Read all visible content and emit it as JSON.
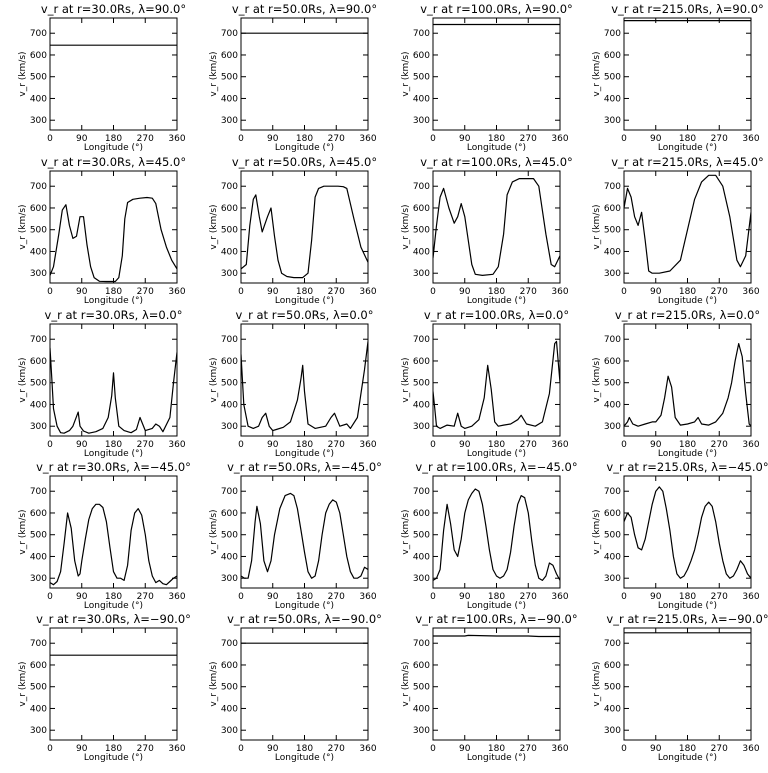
{
  "chart_data": [
    {
      "type": "line",
      "title": "v_r at r=30.0Rs, λ=90.0°",
      "xlabel": "Longitude (°)",
      "ylabel": "v_r (km/s)",
      "xlim": [
        0,
        360
      ],
      "ylim": [
        255,
        770
      ],
      "xticks": [
        0,
        90,
        180,
        270,
        360
      ],
      "yticks": [
        300,
        400,
        500,
        600,
        700
      ],
      "x": [
        0,
        360
      ],
      "y": [
        645,
        645
      ]
    },
    {
      "type": "line",
      "title": "v_r at r=50.0Rs, λ=90.0°",
      "xlabel": "Longitude (°)",
      "ylabel": "v_r (km/s)",
      "xlim": [
        0,
        360
      ],
      "ylim": [
        255,
        770
      ],
      "xticks": [
        0,
        90,
        180,
        270,
        360
      ],
      "yticks": [
        300,
        400,
        500,
        600,
        700
      ],
      "x": [
        0,
        360
      ],
      "y": [
        700,
        700
      ]
    },
    {
      "type": "line",
      "title": "v_r at r=100.0Rs, λ=90.0°",
      "xlabel": "Longitude (°)",
      "ylabel": "v_r (km/s)",
      "xlim": [
        0,
        360
      ],
      "ylim": [
        255,
        770
      ],
      "xticks": [
        0,
        90,
        180,
        270,
        360
      ],
      "yticks": [
        300,
        400,
        500,
        600,
        700
      ],
      "x": [
        0,
        360
      ],
      "y": [
        740,
        740
      ]
    },
    {
      "type": "line",
      "title": "v_r at r=215.0Rs, λ=90.0°",
      "xlabel": "Longitude (°)",
      "ylabel": "v_r (km/s)",
      "xlim": [
        0,
        360
      ],
      "ylim": [
        255,
        770
      ],
      "xticks": [
        0,
        90,
        180,
        270,
        360
      ],
      "yticks": [
        300,
        400,
        500,
        600,
        700
      ],
      "x": [
        0,
        360
      ],
      "y": [
        758,
        758
      ]
    },
    {
      "type": "line",
      "title": "v_r at r=30.0Rs, λ=45.0°",
      "xlabel": "Longitude (°)",
      "ylabel": "v_r (km/s)",
      "xlim": [
        0,
        360
      ],
      "ylim": [
        255,
        770
      ],
      "xticks": [
        0,
        90,
        180,
        270,
        360
      ],
      "yticks": [
        300,
        400,
        500,
        600,
        700
      ],
      "x": [
        0,
        10,
        25,
        35,
        45,
        55,
        65,
        75,
        85,
        95,
        105,
        115,
        125,
        140,
        160,
        185,
        195,
        205,
        212,
        220,
        235,
        255,
        275,
        290,
        300,
        315,
        330,
        345,
        360
      ],
      "y": [
        290,
        330,
        480,
        590,
        615,
        520,
        460,
        470,
        560,
        560,
        430,
        330,
        280,
        263,
        262,
        262,
        280,
        380,
        550,
        625,
        640,
        645,
        648,
        645,
        620,
        500,
        420,
        360,
        320
      ]
    },
    {
      "type": "line",
      "title": "v_r at r=50.0Rs, λ=45.0°",
      "xlabel": "Longitude (°)",
      "ylabel": "v_r (km/s)",
      "xlim": [
        0,
        360
      ],
      "ylim": [
        255,
        770
      ],
      "xticks": [
        0,
        90,
        180,
        270,
        360
      ],
      "yticks": [
        300,
        400,
        500,
        600,
        700
      ],
      "x": [
        0,
        15,
        25,
        35,
        42,
        52,
        60,
        75,
        85,
        95,
        105,
        115,
        130,
        150,
        175,
        190,
        200,
        210,
        220,
        235,
        255,
        275,
        290,
        300,
        320,
        340,
        360
      ],
      "y": [
        320,
        340,
        520,
        640,
        660,
        560,
        490,
        560,
        600,
        470,
        360,
        300,
        285,
        280,
        280,
        300,
        450,
        650,
        690,
        700,
        700,
        700,
        698,
        690,
        550,
        420,
        350
      ]
    },
    {
      "type": "line",
      "title": "v_r at r=100.0Rs, λ=45.0°",
      "xlabel": "Longitude (°)",
      "ylabel": "v_r (km/s)",
      "xlim": [
        0,
        360
      ],
      "ylim": [
        255,
        770
      ],
      "xticks": [
        0,
        90,
        180,
        270,
        360
      ],
      "yticks": [
        300,
        400,
        500,
        600,
        700
      ],
      "x": [
        0,
        10,
        20,
        30,
        45,
        60,
        70,
        80,
        90,
        100,
        110,
        120,
        140,
        170,
        185,
        200,
        210,
        225,
        245,
        265,
        285,
        300,
        320,
        335,
        345,
        360
      ],
      "y": [
        370,
        520,
        650,
        690,
        600,
        530,
        560,
        620,
        560,
        450,
        340,
        295,
        290,
        295,
        330,
        480,
        660,
        720,
        735,
        735,
        735,
        700,
        480,
        340,
        330,
        380
      ]
    },
    {
      "type": "line",
      "title": "v_r at r=215.0Rs, λ=45.0°",
      "xlabel": "Longitude (°)",
      "ylabel": "v_r (km/s)",
      "xlim": [
        0,
        360
      ],
      "ylim": [
        255,
        770
      ],
      "xticks": [
        0,
        90,
        180,
        270,
        360
      ],
      "yticks": [
        300,
        400,
        500,
        600,
        700
      ],
      "x": [
        0,
        10,
        20,
        30,
        40,
        50,
        60,
        70,
        80,
        100,
        130,
        160,
        180,
        200,
        220,
        240,
        260,
        280,
        300,
        320,
        330,
        345,
        360
      ],
      "y": [
        600,
        690,
        650,
        560,
        520,
        580,
        450,
        310,
        300,
        300,
        310,
        360,
        500,
        640,
        720,
        750,
        750,
        700,
        560,
        360,
        330,
        380,
        580
      ]
    },
    {
      "type": "line",
      "title": "v_r at r=30.0Rs, λ=0.0°",
      "xlabel": "Longitude (°)",
      "ylabel": "v_r (km/s)",
      "xlim": [
        0,
        360
      ],
      "ylim": [
        255,
        770
      ],
      "xticks": [
        0,
        90,
        180,
        270,
        360
      ],
      "yticks": [
        300,
        400,
        500,
        600,
        700
      ],
      "x": [
        0,
        5,
        10,
        20,
        30,
        40,
        55,
        65,
        80,
        85,
        95,
        110,
        130,
        150,
        165,
        175,
        180,
        185,
        195,
        210,
        230,
        245,
        255,
        270,
        290,
        300,
        310,
        320,
        340,
        350,
        360
      ],
      "y": [
        660,
        520,
        380,
        300,
        270,
        268,
        280,
        300,
        365,
        300,
        278,
        268,
        275,
        290,
        340,
        440,
        545,
        430,
        300,
        280,
        270,
        285,
        340,
        280,
        290,
        310,
        300,
        275,
        340,
        500,
        640
      ]
    },
    {
      "type": "line",
      "title": "v_r at r=50.0Rs, λ=0.0°",
      "xlabel": "Longitude (°)",
      "ylabel": "v_r (km/s)",
      "xlim": [
        0,
        360
      ],
      "ylim": [
        255,
        770
      ],
      "xticks": [
        0,
        90,
        180,
        270,
        360
      ],
      "yticks": [
        300,
        400,
        500,
        600,
        700
      ],
      "x": [
        0,
        8,
        20,
        35,
        50,
        60,
        70,
        80,
        90,
        100,
        120,
        140,
        160,
        170,
        175,
        180,
        190,
        210,
        240,
        255,
        265,
        280,
        300,
        310,
        330,
        350,
        360
      ],
      "y": [
        630,
        400,
        300,
        290,
        300,
        340,
        360,
        300,
        280,
        285,
        295,
        320,
        420,
        520,
        580,
        460,
        310,
        290,
        300,
        340,
        360,
        300,
        310,
        290,
        340,
        560,
        690
      ]
    },
    {
      "type": "line",
      "title": "v_r at r=100.0Rs, λ=0.0°",
      "xlabel": "Longitude (°)",
      "ylabel": "v_r (km/s)",
      "xlim": [
        0,
        360
      ],
      "ylim": [
        255,
        770
      ],
      "xticks": [
        0,
        90,
        180,
        270,
        360
      ],
      "yticks": [
        300,
        400,
        500,
        600,
        700
      ],
      "x": [
        0,
        5,
        10,
        20,
        40,
        60,
        70,
        80,
        90,
        110,
        130,
        145,
        155,
        165,
        175,
        185,
        200,
        220,
        240,
        250,
        265,
        290,
        310,
        330,
        345,
        350,
        360
      ],
      "y": [
        460,
        380,
        300,
        290,
        305,
        300,
        360,
        300,
        290,
        300,
        330,
        430,
        580,
        470,
        320,
        300,
        305,
        310,
        330,
        350,
        310,
        300,
        320,
        450,
        680,
        690,
        500
      ]
    },
    {
      "type": "line",
      "title": "v_r at r=215.0Rs, λ=0.0°",
      "xlabel": "Longitude (°)",
      "ylabel": "v_r (km/s)",
      "xlim": [
        0,
        360
      ],
      "ylim": [
        255,
        770
      ],
      "xticks": [
        0,
        90,
        180,
        270,
        360
      ],
      "yticks": [
        300,
        400,
        500,
        600,
        700
      ],
      "x": [
        0,
        10,
        15,
        25,
        40,
        60,
        80,
        90,
        105,
        115,
        125,
        135,
        145,
        160,
        180,
        200,
        210,
        220,
        240,
        260,
        280,
        295,
        305,
        315,
        325,
        335,
        345,
        355,
        360
      ],
      "y": [
        300,
        320,
        340,
        310,
        300,
        310,
        320,
        320,
        350,
        430,
        530,
        480,
        340,
        305,
        310,
        320,
        340,
        310,
        305,
        320,
        360,
        430,
        500,
        600,
        680,
        620,
        450,
        310,
        300
      ]
    },
    {
      "type": "line",
      "title": "v_r at r=30.0Rs, λ=−45.0°",
      "xlabel": "Longitude (°)",
      "ylabel": "v_r (km/s)",
      "xlim": [
        0,
        360
      ],
      "ylim": [
        255,
        770
      ],
      "xticks": [
        0,
        90,
        180,
        270,
        360
      ],
      "yticks": [
        300,
        400,
        500,
        600,
        700
      ],
      "x": [
        0,
        10,
        20,
        30,
        40,
        50,
        60,
        70,
        80,
        85,
        90,
        100,
        110,
        120,
        130,
        140,
        150,
        160,
        170,
        180,
        190,
        200,
        210,
        220,
        230,
        240,
        250,
        260,
        270,
        280,
        290,
        300,
        310,
        320,
        330,
        340,
        350,
        360
      ],
      "y": [
        280,
        270,
        285,
        330,
        460,
        600,
        530,
        380,
        310,
        320,
        380,
        480,
        570,
        620,
        640,
        640,
        625,
        560,
        440,
        330,
        300,
        300,
        290,
        360,
        520,
        600,
        620,
        590,
        500,
        380,
        310,
        280,
        290,
        275,
        270,
        285,
        300,
        310
      ]
    },
    {
      "type": "line",
      "title": "v_r at r=50.0Rs, λ=−45.0°",
      "xlabel": "Longitude (°)",
      "ylabel": "v_r (km/s)",
      "xlim": [
        0,
        360
      ],
      "ylim": [
        255,
        770
      ],
      "xticks": [
        0,
        90,
        180,
        270,
        360
      ],
      "yticks": [
        300,
        400,
        500,
        600,
        700
      ],
      "x": [
        0,
        10,
        20,
        30,
        40,
        45,
        55,
        65,
        75,
        85,
        95,
        110,
        125,
        140,
        150,
        160,
        170,
        180,
        190,
        200,
        210,
        220,
        230,
        240,
        250,
        260,
        270,
        280,
        290,
        300,
        310,
        320,
        330,
        340,
        350,
        360
      ],
      "y": [
        310,
        300,
        300,
        380,
        560,
        630,
        550,
        380,
        330,
        380,
        500,
        620,
        680,
        690,
        680,
        620,
        520,
        420,
        330,
        300,
        310,
        380,
        500,
        600,
        640,
        660,
        650,
        600,
        500,
        400,
        330,
        300,
        300,
        310,
        350,
        340
      ]
    },
    {
      "type": "line",
      "title": "v_r at r=100.0Rs, λ=−45.0°",
      "xlabel": "Longitude (°)",
      "ylabel": "v_r (km/s)",
      "xlim": [
        0,
        360
      ],
      "ylim": [
        255,
        770
      ],
      "xticks": [
        0,
        90,
        180,
        270,
        360
      ],
      "yticks": [
        300,
        400,
        500,
        600,
        700
      ],
      "x": [
        0,
        10,
        20,
        30,
        40,
        50,
        60,
        70,
        80,
        90,
        100,
        110,
        120,
        130,
        140,
        150,
        160,
        170,
        180,
        190,
        200,
        210,
        220,
        230,
        240,
        250,
        260,
        270,
        280,
        290,
        300,
        310,
        320,
        330,
        340,
        350,
        360
      ],
      "y": [
        290,
        300,
        340,
        520,
        640,
        550,
        430,
        400,
        480,
        600,
        660,
        690,
        710,
        700,
        640,
        540,
        430,
        340,
        310,
        300,
        310,
        340,
        420,
        540,
        640,
        680,
        670,
        600,
        470,
        360,
        300,
        290,
        310,
        370,
        360,
        320,
        290
      ]
    },
    {
      "type": "line",
      "title": "v_r at r=215.0Rs, λ=−45.0°",
      "xlabel": "Longitude (°)",
      "ylabel": "v_r (km/s)",
      "xlim": [
        0,
        360
      ],
      "ylim": [
        255,
        770
      ],
      "xticks": [
        0,
        90,
        180,
        270,
        360
      ],
      "yticks": [
        300,
        400,
        500,
        600,
        700
      ],
      "x": [
        0,
        10,
        20,
        30,
        40,
        50,
        60,
        70,
        80,
        90,
        100,
        110,
        120,
        130,
        140,
        150,
        160,
        170,
        180,
        190,
        200,
        210,
        220,
        230,
        240,
        250,
        260,
        270,
        280,
        290,
        300,
        310,
        320,
        330,
        340,
        350,
        360
      ],
      "y": [
        560,
        600,
        580,
        500,
        440,
        430,
        480,
        560,
        640,
        700,
        720,
        700,
        620,
        520,
        400,
        320,
        300,
        310,
        340,
        380,
        430,
        500,
        580,
        630,
        650,
        630,
        560,
        460,
        380,
        320,
        300,
        310,
        340,
        380,
        360,
        320,
        300
      ]
    },
    {
      "type": "line",
      "title": "v_r at r=30.0Rs, λ=−90.0°",
      "xlabel": "Longitude (°)",
      "ylabel": "v_r (km/s)",
      "xlim": [
        0,
        360
      ],
      "ylim": [
        255,
        770
      ],
      "xticks": [
        0,
        90,
        180,
        270,
        360
      ],
      "yticks": [
        300,
        400,
        500,
        600,
        700
      ],
      "x": [
        0,
        360
      ],
      "y": [
        645,
        645
      ]
    },
    {
      "type": "line",
      "title": "v_r at r=50.0Rs, λ=−90.0°",
      "xlabel": "Longitude (°)",
      "ylabel": "v_r (km/s)",
      "xlim": [
        0,
        360
      ],
      "ylim": [
        255,
        770
      ],
      "xticks": [
        0,
        90,
        180,
        270,
        360
      ],
      "yticks": [
        300,
        400,
        500,
        600,
        700
      ],
      "x": [
        0,
        360
      ],
      "y": [
        700,
        700
      ]
    },
    {
      "type": "line",
      "title": "v_r at r=100.0Rs, λ=−90.0°",
      "xlabel": "Longitude (°)",
      "ylabel": "v_r (km/s)",
      "xlim": [
        0,
        360
      ],
      "ylim": [
        255,
        770
      ],
      "xticks": [
        0,
        90,
        180,
        270,
        360
      ],
      "yticks": [
        300,
        400,
        500,
        600,
        700
      ],
      "x": [
        0,
        90,
        100,
        180,
        270,
        300,
        360
      ],
      "y": [
        733,
        733,
        736,
        733,
        733,
        731,
        731
      ]
    },
    {
      "type": "line",
      "title": "v_r at r=215.0Rs, λ=−90.0°",
      "xlabel": "Longitude (°)",
      "ylabel": "v_r (km/s)",
      "xlim": [
        0,
        360
      ],
      "ylim": [
        255,
        770
      ],
      "xticks": [
        0,
        90,
        180,
        270,
        360
      ],
      "yticks": [
        300,
        400,
        500,
        600,
        700
      ],
      "x": [
        0,
        360
      ],
      "y": [
        748,
        748
      ]
    }
  ]
}
